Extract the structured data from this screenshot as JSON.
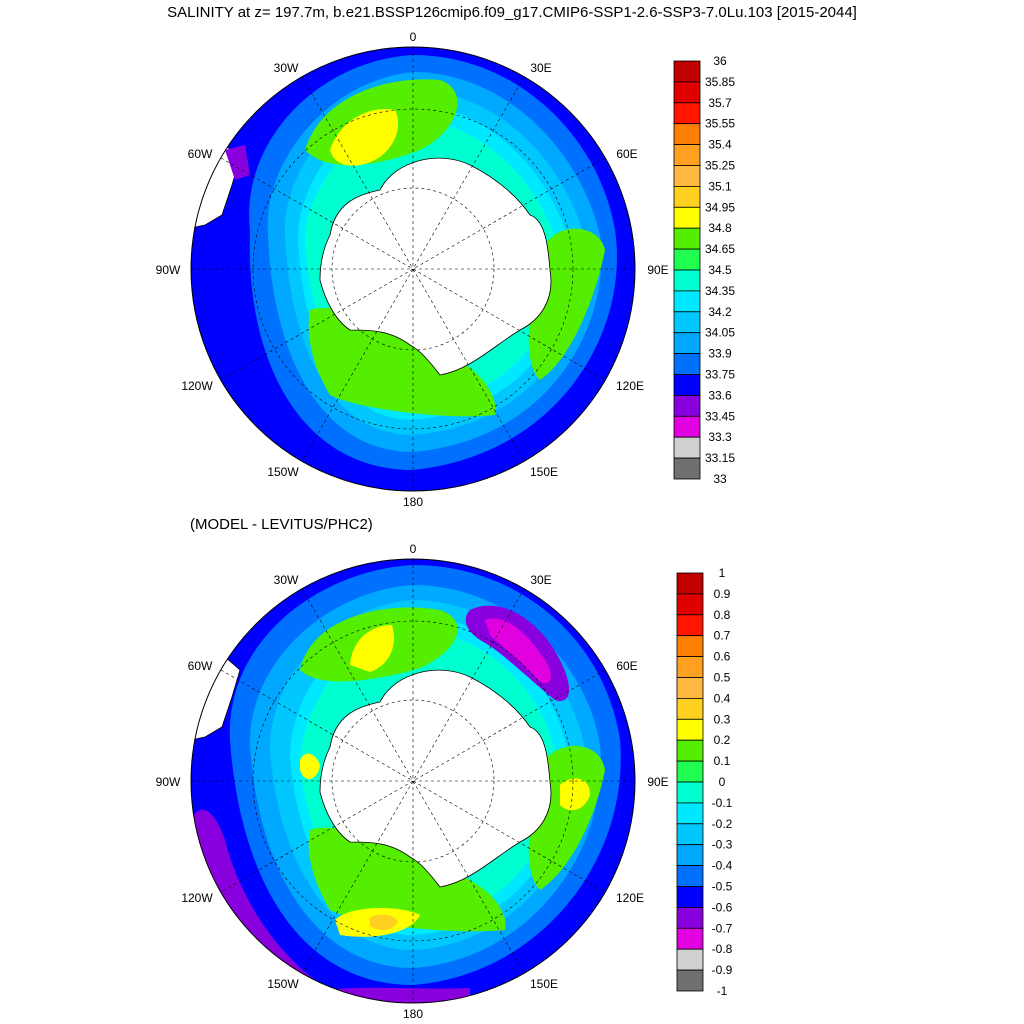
{
  "title": "SALINITY at z= 197.7m, b.e21.BSSP126cmip6.f09_g17.CMIP6-SSP1-2.6-SSP3-7.0Lu.103 [2015-2044]",
  "subtitle": "(MODEL - LEVITUS/PHC2)",
  "lon_labels": [
    "0",
    "30E",
    "60E",
    "90E",
    "120E",
    "150E",
    "180",
    "150W",
    "120W",
    "90W",
    "60W",
    "30W"
  ],
  "colors": {
    "ocean_deep_blue": "#0000ff",
    "land": "#ffffff",
    "coast": "#000000"
  },
  "chart_data": [
    {
      "type": "heatmap",
      "projection": "south-polar-stereographic",
      "title": "SALINITY at z= 197.7m, b.e21.BSSP126cmip6.f09_g17.CMIP6-SSP1-2.6-SSP3-7.0Lu.103 [2015-2044]",
      "colorbar": {
        "labels": [
          "36",
          "35.85",
          "35.7",
          "35.55",
          "35.4",
          "35.25",
          "35.1",
          "34.95",
          "34.8",
          "34.65",
          "34.5",
          "34.35",
          "34.2",
          "34.05",
          "33.9",
          "33.75",
          "33.6",
          "33.45",
          "33.3",
          "33.15",
          "33"
        ],
        "colors": [
          "#c00000",
          "#e00000",
          "#ff1500",
          "#ff8000",
          "#ffa020",
          "#ffb840",
          "#ffd020",
          "#ffff00",
          "#55ee00",
          "#20ff50",
          "#00ffd0",
          "#00e8ff",
          "#00c8ff",
          "#00a8ff",
          "#0070ff",
          "#0000ff",
          "#8800dd",
          "#e000e0",
          "#d0d0d0",
          "#707070"
        ]
      }
    },
    {
      "type": "heatmap",
      "projection": "south-polar-stereographic",
      "title": "(MODEL - LEVITUS/PHC2)",
      "colorbar": {
        "labels": [
          "1",
          "0.9",
          "0.8",
          "0.7",
          "0.6",
          "0.5",
          "0.4",
          "0.3",
          "0.2",
          "0.1",
          "0",
          "-0.1",
          "-0.2",
          "-0.3",
          "-0.4",
          "-0.5",
          "-0.6",
          "-0.7",
          "-0.8",
          "-0.9",
          "-1"
        ],
        "colors": [
          "#c00000",
          "#e00000",
          "#ff1500",
          "#ff8000",
          "#ffa020",
          "#ffb840",
          "#ffd020",
          "#ffff00",
          "#55ee00",
          "#20ff50",
          "#00ffd0",
          "#00e8ff",
          "#00c8ff",
          "#00a8ff",
          "#0070ff",
          "#0000ff",
          "#8800dd",
          "#e000e0",
          "#d0d0d0",
          "#707070"
        ]
      }
    }
  ]
}
